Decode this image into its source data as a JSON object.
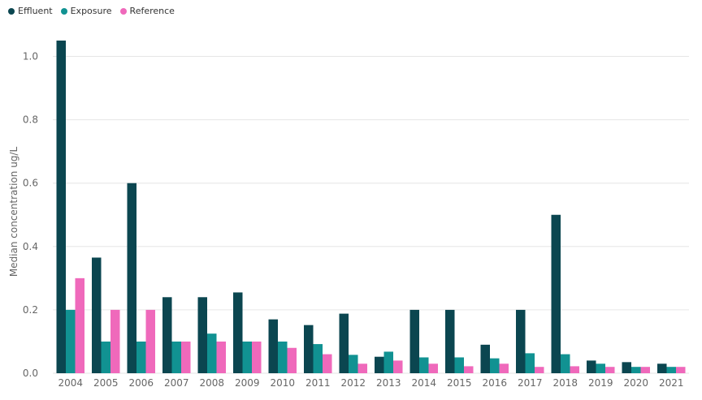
{
  "chart_data": {
    "type": "bar",
    "title": "",
    "xlabel": "",
    "ylabel": "Median concentration ug/L",
    "ylim": [
      0,
      1.05
    ],
    "yticks": [
      "0.0",
      "0.2",
      "0.4",
      "0.6",
      "0.8",
      "1.0"
    ],
    "grid": true,
    "legend_position": "top-left",
    "categories": [
      "2004",
      "2005",
      "2006",
      "2007",
      "2008",
      "2009",
      "2010",
      "2011",
      "2012",
      "2013",
      "2014",
      "2015",
      "2016",
      "2017",
      "2018",
      "2019",
      "2020",
      "2021"
    ],
    "series": [
      {
        "name": "Effluent",
        "color": "#0b4650",
        "values": [
          1.05,
          0.365,
          0.6,
          0.24,
          0.24,
          0.255,
          0.17,
          0.152,
          0.188,
          0.052,
          0.2,
          0.2,
          0.09,
          0.2,
          0.5,
          0.04,
          0.035,
          0.03
        ]
      },
      {
        "name": "Exposure",
        "color": "#119292",
        "values": [
          0.2,
          0.1,
          0.1,
          0.1,
          0.125,
          0.1,
          0.1,
          0.092,
          0.058,
          0.068,
          0.05,
          0.05,
          0.047,
          0.063,
          0.06,
          0.03,
          0.02,
          0.02
        ]
      },
      {
        "name": "Reference",
        "color": "#ef69bb",
        "values": [
          0.3,
          0.2,
          0.2,
          0.1,
          0.1,
          0.1,
          0.08,
          0.06,
          0.03,
          0.04,
          0.03,
          0.022,
          0.03,
          0.02,
          0.022,
          0.02,
          0.02,
          0.02
        ]
      }
    ]
  }
}
